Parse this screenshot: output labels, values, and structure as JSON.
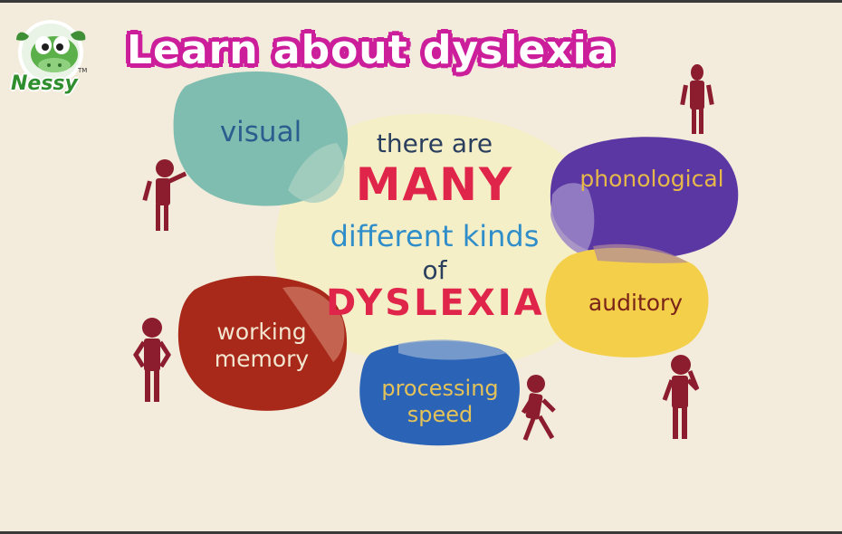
{
  "brand": {
    "logo_text": "Nessy",
    "trademark": "TM"
  },
  "title": "Learn about dyslexia",
  "center": {
    "line1": "there are",
    "line2": "MANY",
    "line3": "different kinds",
    "line4": "of",
    "line5": "DYSLEXIA"
  },
  "types": {
    "visual": "visual",
    "phonological": "phonological",
    "auditory": "auditory",
    "working_memory_1": "working",
    "working_memory_2": "memory",
    "processing_speed_1": "processing",
    "processing_speed_2": "speed"
  },
  "colors": {
    "background": "#f3ecdc",
    "title_outline": "#cc1f9b",
    "visual_blob": "#7fbdb0",
    "phonological_blob": "#5b37a3",
    "auditory_blob": "#f4cf4a",
    "working_memory_blob": "#a8281a",
    "processing_speed_blob": "#2b64b7",
    "center_blob": "#f5efc4",
    "figure": "#8c1d2e"
  }
}
